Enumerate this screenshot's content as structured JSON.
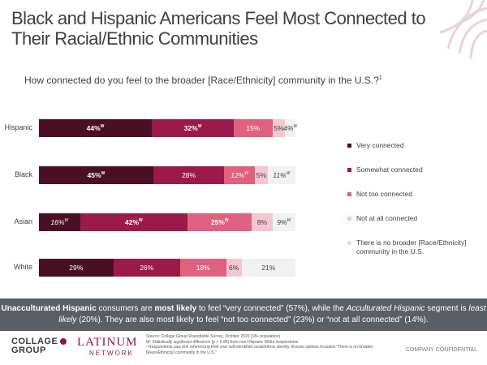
{
  "title": "Black and Hispanic Americans Feel Most Connected to Their Racial/Ethnic Communities",
  "question": "How connected do you feel to the broader [Race/Ethnicity] community in the U.S.?",
  "question_sup": "1",
  "colors": {
    "very_connected": "#4a0f22",
    "somewhat_connected": "#9c1a4a",
    "not_too_connected": "#e0607f",
    "not_at_all_connected": "#f3c6d1",
    "no_broader": "#f1f1f1",
    "banner": "#5a5f66",
    "brand": "#8b1a3c"
  },
  "chart_data": {
    "type": "bar",
    "orientation": "horizontal",
    "stacked": true,
    "categories": [
      "Hispanic",
      "Black",
      "Asian",
      "White"
    ],
    "series": [
      {
        "name": "Very connected",
        "values": [
          44,
          45,
          16,
          29
        ]
      },
      {
        "name": "Somewhat connected",
        "values": [
          32,
          28,
          42,
          26
        ]
      },
      {
        "name": "Not too connected",
        "values": [
          15,
          12,
          25,
          18
        ]
      },
      {
        "name": "Not at all connected",
        "values": [
          5,
          5,
          8,
          6
        ]
      },
      {
        "name": "There is no broader [Race/Ethnicity] community in the U.S.",
        "values": [
          4,
          11,
          9,
          21
        ]
      }
    ],
    "labels": [
      [
        {
          "text": "44%",
          "sup": "W",
          "bold": true,
          "italic": false
        },
        {
          "text": "32%",
          "sup": "W",
          "bold": true,
          "italic": false
        },
        {
          "text": "15%",
          "sup": "",
          "bold": false,
          "italic": false
        },
        {
          "text": "5%",
          "sup": "",
          "bold": false,
          "italic": false
        },
        {
          "text": "4%",
          "sup": "W",
          "bold": false,
          "italic": true
        }
      ],
      [
        {
          "text": "45%",
          "sup": "W",
          "bold": true,
          "italic": false
        },
        {
          "text": "28%",
          "sup": "",
          "bold": false,
          "italic": false
        },
        {
          "text": "12%",
          "sup": "W",
          "bold": false,
          "italic": true
        },
        {
          "text": "5%",
          "sup": "",
          "bold": false,
          "italic": false
        },
        {
          "text": "11%",
          "sup": "W",
          "bold": false,
          "italic": true
        }
      ],
      [
        {
          "text": "16%",
          "sup": "W",
          "bold": false,
          "italic": true
        },
        {
          "text": "42%",
          "sup": "W",
          "bold": true,
          "italic": false
        },
        {
          "text": "25%",
          "sup": "W",
          "bold": true,
          "italic": false
        },
        {
          "text": "8%",
          "sup": "",
          "bold": false,
          "italic": false
        },
        {
          "text": "9%",
          "sup": "W",
          "bold": false,
          "italic": true
        }
      ],
      [
        {
          "text": "29%",
          "sup": "",
          "bold": false,
          "italic": false
        },
        {
          "text": "26%",
          "sup": "",
          "bold": false,
          "italic": false
        },
        {
          "text": "18%",
          "sup": "",
          "bold": false,
          "italic": false
        },
        {
          "text": "6%",
          "sup": "",
          "bold": false,
          "italic": false
        },
        {
          "text": "21%",
          "sup": "",
          "bold": false,
          "italic": false
        }
      ]
    ],
    "legend_position": "right"
  },
  "banner": {
    "p1": "Unacculturated Hispanic",
    "p2": " consumers are ",
    "p3": "most likely",
    "p4": " to feel “very connected” (57%), while the ",
    "p5": "Acculturated Hispanic",
    "p6": " segment is ",
    "p7": "least likely",
    "p8": " (20%). They are also most likely to feel “not too connected” (23%) or “not at all connected” (14%)."
  },
  "footer": {
    "logo_collage_line1": "COLLAGE",
    "logo_collage_line2": "GROUP",
    "logo_latinum": "LATINUM",
    "logo_latinum_sub": "NETWORK",
    "source_line1": "Source: Collage Group Roundtable Survey, October 2020 (18+ population)",
    "source_line2": "W: Statistically significant difference (p > 0.95) from non-Hispanic White respondents",
    "source_line3": "¹ Respondents saw text referencing their own self-identified racial/ethnic identity. Answer options included “There is no broader [Race/Ethnicity] community in the U.S.”",
    "confidential": "COMPANY CONFIDENTIAL"
  }
}
